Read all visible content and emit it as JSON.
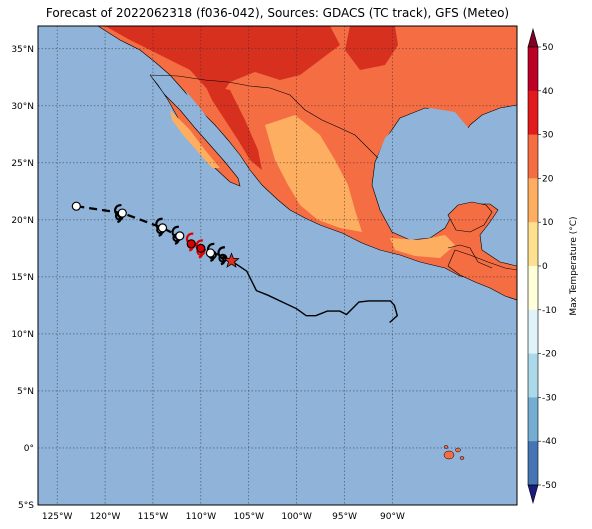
{
  "title": "Forecast of 2022062318 (f036-042), Sources: GDACS (TC track), GFS (Meteo)",
  "map": {
    "lon_range": [
      -127,
      -77
    ],
    "lat_range": [
      -5,
      37
    ],
    "lon_ticks": [
      {
        "value": -125,
        "label": "125°W"
      },
      {
        "value": -120,
        "label": "120°W"
      },
      {
        "value": -115,
        "label": "115°W"
      },
      {
        "value": -110,
        "label": "110°W"
      },
      {
        "value": -105,
        "label": "105°W"
      },
      {
        "value": -100,
        "label": "100°W"
      },
      {
        "value": -95,
        "label": "95°W"
      },
      {
        "value": -90,
        "label": "90°W"
      }
    ],
    "lat_ticks": [
      {
        "value": 35,
        "label": "35°N"
      },
      {
        "value": 30,
        "label": "30°N"
      },
      {
        "value": 25,
        "label": "25°N"
      },
      {
        "value": 20,
        "label": "20°N"
      },
      {
        "value": 15,
        "label": "15°N"
      },
      {
        "value": 10,
        "label": "10°N"
      },
      {
        "value": 5,
        "label": "5°N"
      },
      {
        "value": 0,
        "label": "0°"
      },
      {
        "value": -5,
        "label": "5°S"
      }
    ],
    "ocean_color": "#8fb3d9",
    "grid": true,
    "track_forecast": [
      [
        -123,
        21.2
      ],
      [
        -118.2,
        20.6
      ],
      [
        -114,
        19.3
      ],
      [
        -110.5,
        17.8
      ],
      [
        -109.3,
        17.2
      ],
      [
        -108,
        16.9
      ],
      [
        -106.8,
        16.4
      ]
    ],
    "track_past": [
      [
        -106.8,
        16.4
      ],
      [
        -105.2,
        15.5
      ],
      [
        -104.2,
        13.8
      ],
      [
        -103,
        13.4
      ],
      [
        -101.5,
        12.8
      ],
      [
        -100,
        12.2
      ],
      [
        -99,
        11.6
      ],
      [
        -98,
        11.6
      ],
      [
        -96.8,
        12
      ],
      [
        -95.5,
        12
      ],
      [
        -94.8,
        11.7
      ],
      [
        -93.5,
        12.8
      ],
      [
        -92.5,
        12.9
      ],
      [
        -90.2,
        12.9
      ],
      [
        -89.8,
        12.5
      ],
      [
        -89.5,
        11.6
      ],
      [
        -90.3,
        11
      ]
    ],
    "storm_icons": [
      {
        "lon": -118.5,
        "lat": 20.6,
        "color": "#000000"
      },
      {
        "lon": -114.2,
        "lat": 19.4,
        "color": "#000000"
      },
      {
        "lon": -112.5,
        "lat": 18.7,
        "color": "#000000"
      },
      {
        "lon": -111,
        "lat": 18.1,
        "color": "#dd0000"
      },
      {
        "lon": -110,
        "lat": 17.5,
        "color": "#dd0000"
      },
      {
        "lon": -108.8,
        "lat": 17.2,
        "color": "#000000"
      },
      {
        "lon": -107.7,
        "lat": 16.9,
        "color": "#000000"
      }
    ],
    "track_points": [
      {
        "lon": -123,
        "lat": 21.2,
        "color": "#ffffff"
      },
      {
        "lon": -118.2,
        "lat": 20.6,
        "color": "#ffffff"
      },
      {
        "lon": -114,
        "lat": 19.3,
        "color": "#ffffff"
      },
      {
        "lon": -112.2,
        "lat": 18.6,
        "color": "#ffffff"
      },
      {
        "lon": -111,
        "lat": 17.9,
        "color": "#dd0000"
      },
      {
        "lon": -110,
        "lat": 17.5,
        "color": "#dd0000"
      },
      {
        "lon": -109,
        "lat": 17.1,
        "color": "#ffffff"
      }
    ],
    "current_position": {
      "lon": -106.8,
      "lat": 16.4,
      "color": "#e03020"
    }
  },
  "colorbar": {
    "label": "Max Temperature (°C)",
    "ticks": [
      50,
      40,
      30,
      20,
      10,
      0,
      -10,
      -20,
      -30,
      -40,
      -50
    ],
    "colors": [
      "#800026",
      "#bd0026",
      "#e31a1c",
      "#f46d43",
      "#fdae61",
      "#fee090",
      "#ffffd9",
      "#e0f3f8",
      "#abd9e9",
      "#74add1",
      "#4575b4",
      "#3b56a8",
      "#313695",
      "#1a1a80"
    ]
  }
}
